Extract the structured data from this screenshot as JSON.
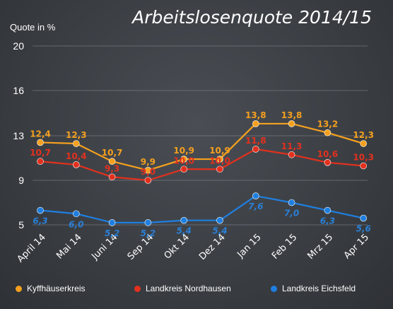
{
  "chart_data": {
    "type": "line",
    "title": "Arbeitslosenquote 2014/15",
    "ylabel": "Quote in %",
    "xlabel": "",
    "categories": [
      "April 14",
      "Mai 14",
      "Juni 14",
      "Sep 14",
      "Okt 14",
      "Dez 14",
      "Jan 15",
      "Feb 15",
      "Mrz 15",
      "Apr 15"
    ],
    "yticks": [
      5,
      9,
      13,
      16,
      20
    ],
    "ylim": [
      5,
      20
    ],
    "grid": true,
    "legend_position": "bottom",
    "series": [
      {
        "name": "Kyffhäuserkreis",
        "color": "#f5a01e",
        "labelColor": "#f5a01e",
        "values": [
          12.4,
          12.3,
          10.7,
          9.9,
          10.9,
          10.9,
          13.8,
          13.8,
          13.2,
          12.3
        ]
      },
      {
        "name": "Landkreis Nordhausen",
        "color": "#e3301e",
        "labelColor": "#e3301e",
        "values": [
          10.7,
          10.4,
          9.3,
          9.0,
          10.0,
          10.0,
          11.8,
          11.3,
          10.6,
          10.3
        ]
      },
      {
        "name": "Landkreis Eichsfeld",
        "color": "#1f7fe0",
        "labelColor": "#2a7fd6",
        "values": [
          6.3,
          6.0,
          5.2,
          5.2,
          5.4,
          5.4,
          7.6,
          7.0,
          6.3,
          5.6
        ]
      }
    ]
  }
}
